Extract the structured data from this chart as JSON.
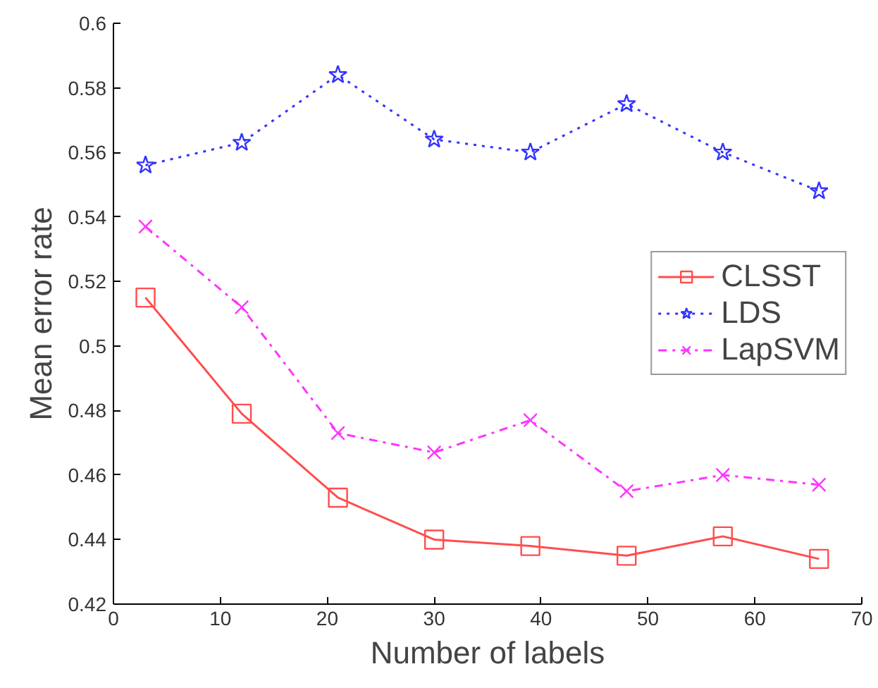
{
  "chart_data": {
    "type": "line",
    "xlabel": "Number of labels",
    "ylabel": "Mean error rate",
    "x": [
      3,
      12,
      21,
      30,
      39,
      48,
      57,
      66
    ],
    "series": [
      {
        "name": "CLSST",
        "color": "#ff4d4d",
        "marker": "square",
        "line_style": "solid",
        "values": [
          0.515,
          0.479,
          0.453,
          0.44,
          0.438,
          0.435,
          0.441,
          0.434
        ]
      },
      {
        "name": "LDS",
        "color": "#3333ff",
        "marker": "star",
        "line_style": "dotted",
        "values": [
          0.556,
          0.563,
          0.584,
          0.564,
          0.56,
          0.575,
          0.56,
          0.548
        ]
      },
      {
        "name": "LapSVM",
        "color": "#ff33ff",
        "marker": "cross",
        "line_style": "dashdot",
        "values": [
          0.537,
          0.512,
          0.473,
          0.467,
          0.477,
          0.455,
          0.46,
          0.457
        ]
      }
    ],
    "xlim": [
      0,
      70
    ],
    "ylim": [
      0.42,
      0.6
    ],
    "xticks": [
      0,
      10,
      20,
      30,
      40,
      50,
      60,
      70
    ],
    "yticks": [
      0.42,
      0.44,
      0.46,
      0.48,
      {
        "value": 0.5,
        "label": "0.5"
      },
      0.52,
      0.54,
      0.56,
      0.58,
      {
        "value": 0.6,
        "label": "0.6"
      }
    ],
    "grid": false,
    "legend": "right"
  }
}
